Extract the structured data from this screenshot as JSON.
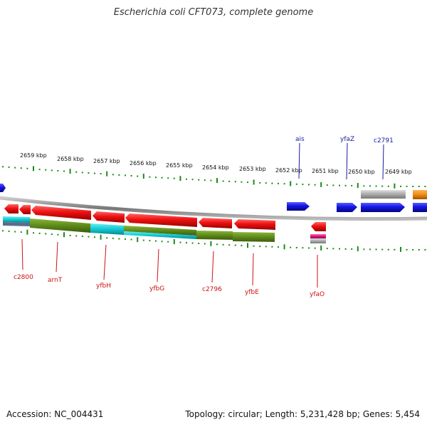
{
  "map": {
    "title": "Escherichia coli CFT073, complete genome",
    "accession_label": "Accession: NC_004431",
    "summary_label": "Topology: circular; Length: 5,231,428 bp; Genes: 5,454"
  },
  "scale_labels": [
    "2659 kbp",
    "2658 kbp",
    "2657 kbp",
    "2656 kbp",
    "2655 kbp",
    "2654 kbp",
    "2653 kbp",
    "2652 kbp",
    "2651 kbp",
    "2650 kbp",
    "2649 kbp"
  ],
  "genes_top": [
    "ais",
    "yfaZ",
    "c2791"
  ],
  "genes_bottom": [
    "c2800",
    "arnT",
    "yfbH",
    "yfbG",
    "c2796",
    "yfbE",
    "yfaO"
  ],
  "colors": {
    "forward": "#1414e6",
    "reverse": "#ee1111",
    "olive": "#5e8a1a",
    "cyan": "#11c9d2",
    "grey": "#aaaaaa",
    "orange": "#f08a10",
    "magenta": "#e0157a",
    "tick": "#1a8a1a",
    "backbone": "#888888"
  }
}
